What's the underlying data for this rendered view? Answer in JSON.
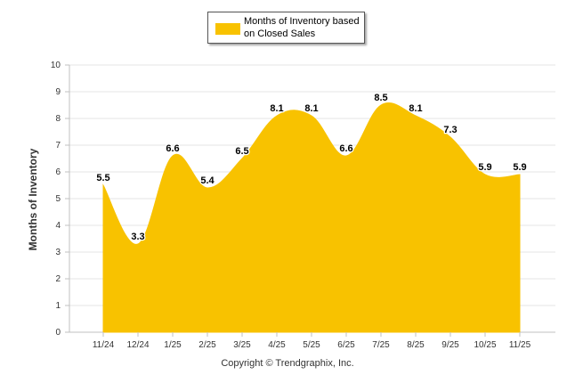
{
  "chart_data": {
    "type": "area",
    "title": "",
    "legend": "Months of Inventory based on Closed Sales",
    "categories": [
      "11/24",
      "12/24",
      "1/25",
      "2/25",
      "3/25",
      "4/25",
      "5/25",
      "6/25",
      "7/25",
      "8/25",
      "9/25",
      "10/25",
      "11/25"
    ],
    "values": [
      5.5,
      3.3,
      6.6,
      5.4,
      6.5,
      8.1,
      8.1,
      6.6,
      8.5,
      8.1,
      7.3,
      5.9,
      5.9
    ],
    "data_labels": [
      "5.5",
      "3.3",
      "6.6",
      "5.4",
      "6.5",
      "8.1",
      "8.1",
      "6.6",
      "8.5",
      "8.1",
      "7.3",
      "5.9",
      "5.9"
    ],
    "xlabel": "",
    "ylabel": "Months of Inventory",
    "ylim": [
      0,
      10
    ],
    "yticks": [
      "0",
      "1",
      "2",
      "3",
      "4",
      "5",
      "6",
      "7",
      "8",
      "9",
      "10"
    ],
    "grid": true,
    "legend_placement": "top-center",
    "color": "#f8c200"
  },
  "footer": {
    "copyright": "Copyright © Trendgraphix, Inc."
  }
}
